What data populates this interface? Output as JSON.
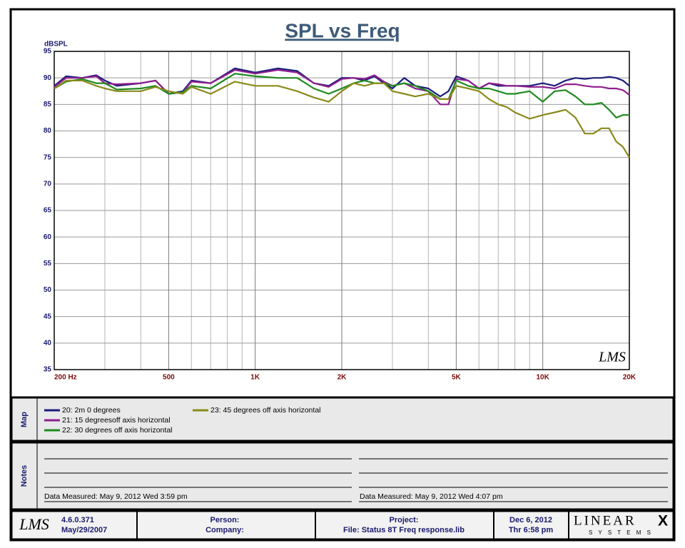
{
  "chart_data": {
    "type": "line",
    "title": "SPL vs Freq",
    "ylabel": "dBSPL",
    "x": [
      200,
      220,
      250,
      280,
      300,
      330,
      400,
      450,
      500,
      560,
      600,
      700,
      850,
      1000,
      1200,
      1400,
      1600,
      1800,
      2000,
      2200,
      2400,
      2600,
      2800,
      3000,
      3300,
      3600,
      4000,
      4400,
      4700,
      5000,
      5500,
      6000,
      6500,
      7000,
      7500,
      8000,
      9000,
      10000,
      11000,
      12000,
      13000,
      14000,
      15000,
      16000,
      17000,
      18000,
      19000,
      20000
    ],
    "series": [
      {
        "name": "20: 2m 0 degrees",
        "color": "#1c1c7c",
        "values": [
          88.5,
          90.3,
          90,
          90.5,
          89.5,
          88.5,
          89,
          89.5,
          87,
          87.5,
          89.5,
          89,
          91.8,
          91,
          91.8,
          91.3,
          89,
          88.5,
          90,
          90,
          89.5,
          90.3,
          89,
          88,
          90,
          88.5,
          88,
          86.5,
          87.5,
          90.3,
          89.5,
          88,
          89,
          88.5,
          88.5,
          88.5,
          88.5,
          89,
          88.5,
          89.5,
          90,
          89.8,
          90,
          90,
          90.2,
          90,
          89.5,
          88.5
        ]
      },
      {
        "name": "21: 15 degreesoff axis  horizontal",
        "color": "#8e1f8e",
        "values": [
          88.3,
          90,
          90,
          90.3,
          89,
          88.8,
          89,
          89.5,
          87,
          87.3,
          89.3,
          89,
          91.5,
          90.8,
          91.5,
          91,
          89,
          88.3,
          89.8,
          90,
          89.8,
          90.5,
          89.3,
          88.5,
          89,
          88,
          87.5,
          85,
          85,
          89.8,
          89.5,
          88,
          89,
          88.8,
          88.5,
          88.5,
          88.3,
          88.3,
          88,
          88.8,
          88.8,
          88.5,
          88.3,
          88.3,
          88,
          88,
          87.7,
          86.8
        ]
      },
      {
        "name": "22: 30 degrees off axis  horizontal",
        "color": "#1f8a1f",
        "values": [
          88,
          89.3,
          89.8,
          89,
          89,
          87.8,
          88,
          88.5,
          87,
          87.3,
          88.5,
          88,
          90.8,
          90.3,
          90,
          90,
          88,
          87,
          88,
          89,
          89.5,
          89,
          89,
          88.5,
          89,
          88.5,
          87.5,
          86,
          86,
          89.5,
          88.5,
          88,
          88,
          87.5,
          87,
          87,
          87.5,
          85.5,
          87.5,
          87.7,
          86.5,
          85,
          85,
          85.3,
          84,
          82.5,
          83,
          83
        ]
      },
      {
        "name": "23: 45 degrees off axis horizontal",
        "color": "#8a8a1c",
        "values": [
          88,
          89.5,
          89.5,
          88.5,
          88,
          87.5,
          87.5,
          88.3,
          87.5,
          87,
          88.3,
          87,
          89.3,
          88.5,
          88.5,
          87.5,
          86.3,
          85.5,
          87.5,
          89,
          88.5,
          89,
          89,
          87.5,
          87,
          86.5,
          87,
          86,
          86,
          88.5,
          88,
          87.5,
          86,
          85,
          84.5,
          83.5,
          82.3,
          83,
          83.5,
          84,
          82.5,
          79.5,
          79.5,
          80.5,
          80.5,
          78,
          77,
          75
        ]
      }
    ],
    "xlim": [
      200,
      20000
    ],
    "xscale": "log",
    "xticks": [
      {
        "value": 200,
        "label": "200 Hz"
      },
      500,
      {
        "value": 1000,
        "label": "1K"
      },
      {
        "value": 2000,
        "label": "2K"
      },
      {
        "value": 5000,
        "label": "5K"
      },
      {
        "value": 10000,
        "label": "10K"
      },
      {
        "value": 20000,
        "label": "20K"
      }
    ],
    "xgrid": [
      300,
      400,
      600,
      700,
      800,
      900,
      3000,
      4000,
      6000,
      7000,
      8000,
      9000
    ],
    "ylim": [
      35,
      95
    ],
    "yticks": [
      35,
      40,
      45,
      50,
      55,
      60,
      65,
      70,
      75,
      80,
      85,
      90,
      95
    ],
    "grid": true,
    "watermark": "LMS"
  },
  "map": {
    "label": "Map"
  },
  "notes": {
    "label": "Notes",
    "left_stamp": "Data Measured: May  9, 2012  Wed  3:59 pm",
    "right_stamp": "Data Measured: May  9, 2012  Wed  4:07 pm"
  },
  "footer": {
    "logo": "LMS",
    "version": "4.6.0.371",
    "version_date": "May/29/2007",
    "person": "Person:",
    "company": "Company:",
    "project": "Project:",
    "file": "File: Status 8T Freq response.lib",
    "date": "Dec  6, 2012",
    "time": "Thr  6:58 pm",
    "brand": "LINEAR",
    "brand_mark": "X",
    "brand_sub": "S Y S T E M S"
  }
}
